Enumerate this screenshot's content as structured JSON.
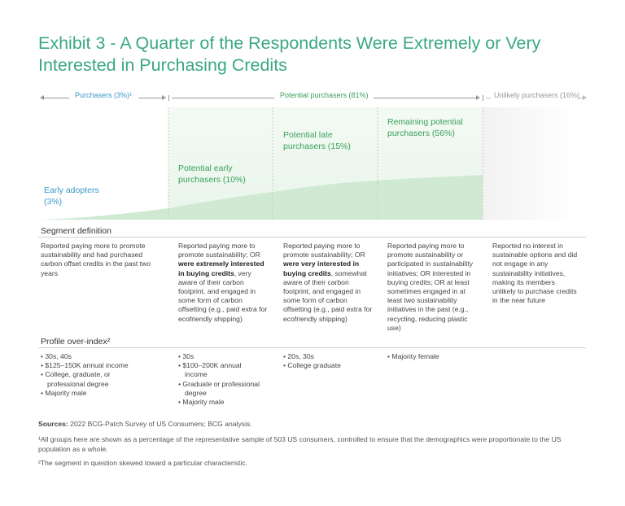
{
  "title": "Exhibit 3 - A Quarter of the Respondents Were Extremely or Very Interested in Purchasing Credits",
  "headers": {
    "purchasers": "Purchasers (3%)¹",
    "potential": "Potential purchasers (81%)",
    "unlikely": "Unlikely purchasers (16%)"
  },
  "colors": {
    "title": "#3aa882",
    "blue": "#3a98c8",
    "green": "#3aa05a",
    "area": "#cfe9d3"
  },
  "chart_data": {
    "type": "area",
    "categories": [
      "Early adopters",
      "Potential early purchasers",
      "Potential late purchasers",
      "Remaining potential purchasers",
      "Unlikely purchasers"
    ],
    "values": [
      3,
      10,
      15,
      56,
      16
    ]
  },
  "segments": [
    {
      "label_l1": "Early adopters",
      "label_l2": "(3%)"
    },
    {
      "label_l1": "Potential early",
      "label_l2": "purchasers (10%)"
    },
    {
      "label_l1": "Potential late",
      "label_l2": "purchasers (15%)"
    },
    {
      "label_l1": "Remaining potential",
      "label_l2": "purchasers (56%)"
    }
  ],
  "segment_definition_title": "Segment definition",
  "definitions": {
    "c1": "Reported paying more to promote sustainability and had purchased carbon offset credits in the past two years",
    "c2_a": "Reported paying more to promote sustainability; OR ",
    "c2_b": "were extremely interested in buying credits",
    "c2_c": ", very aware of their carbon footprint, and engaged in some form of carbon offsetting (e.g., paid extra for ecofriendly shipping)",
    "c3_a": "Reported paying more to promote sustainability; OR ",
    "c3_b": "were very interested in buying credits",
    "c3_c": ", somewhat aware of their carbon footprint, and engaged in some form of carbon offsetting (e.g., paid extra for ecofriendly shipping)",
    "c4": "Reported paying more to promote sustainability or participated in sustainability initiatives; OR interested in buying credits; OR at least sometimes engaged in at least two sustainability initiatives in the past (e.g., recycling, reducing plastic use)",
    "c5": "Reported no interest in sustainable options and did not engage in any sustainability initiatives, making its members unlikely to purchase credits in the near future"
  },
  "profile_title": "Profile over-index²",
  "profiles": {
    "c1": [
      "30s, 40s",
      "$125–150K annual income",
      "College, graduate, or professional degree",
      "Majority male"
    ],
    "c2": [
      "30s",
      "$100–200K annual income",
      "Graduate or professional degree",
      "Majority male"
    ],
    "c3": [
      "20s, 30s",
      "College graduate"
    ],
    "c4": [
      "Majority female"
    ]
  },
  "footnotes": {
    "sources_label": "Sources:",
    "sources": " 2022 BCG-Patch Survey of US Consumers; BCG analysis.",
    "note1": "¹All groups here are shown as a percentage of the representative sample of 503 US consumers, controlled to ensure that the demographics were proportionate to the US population as a whole.",
    "note2": "²The segment in question skewed toward a particular characteristic."
  }
}
